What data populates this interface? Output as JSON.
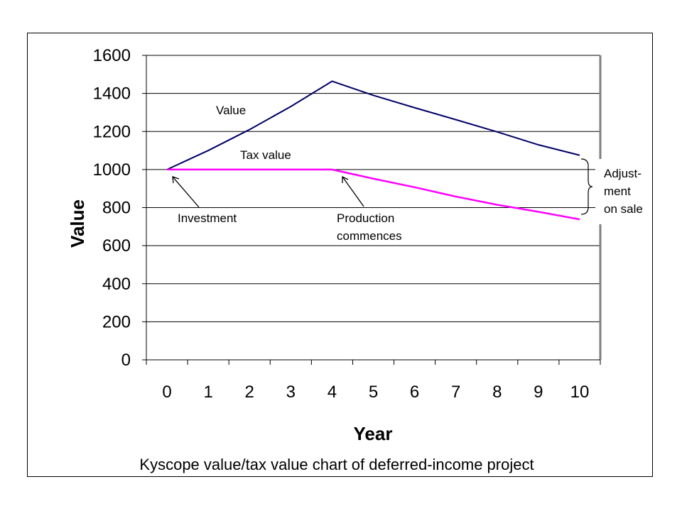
{
  "chart_data": {
    "type": "line",
    "title": "",
    "caption": "Kyscope value/tax value chart of deferred-income project",
    "xlabel": "Year",
    "ylabel": "Value",
    "x": [
      0,
      1,
      2,
      3,
      4,
      5,
      6,
      7,
      8,
      9,
      10
    ],
    "ylim": [
      0,
      1600
    ],
    "yticks": [
      0,
      200,
      400,
      600,
      800,
      1000,
      1200,
      1400,
      1600
    ],
    "grid": true,
    "legend": "none",
    "series": [
      {
        "name": "Value",
        "color": "#000066",
        "values": [
          1000,
          1100,
          1210,
          1331,
          1464,
          1390,
          1325,
          1262,
          1198,
          1130,
          1075
        ]
      },
      {
        "name": "Tax value",
        "color": "#ff00ff",
        "values": [
          1000,
          1000,
          1000,
          1000,
          1000,
          952,
          907,
          858,
          815,
          778,
          738
        ]
      }
    ],
    "annotations": {
      "investment": "Investment",
      "production": [
        "Production",
        "commences"
      ],
      "adjustment": [
        "Adjust-",
        "ment",
        "on sale"
      ]
    }
  }
}
